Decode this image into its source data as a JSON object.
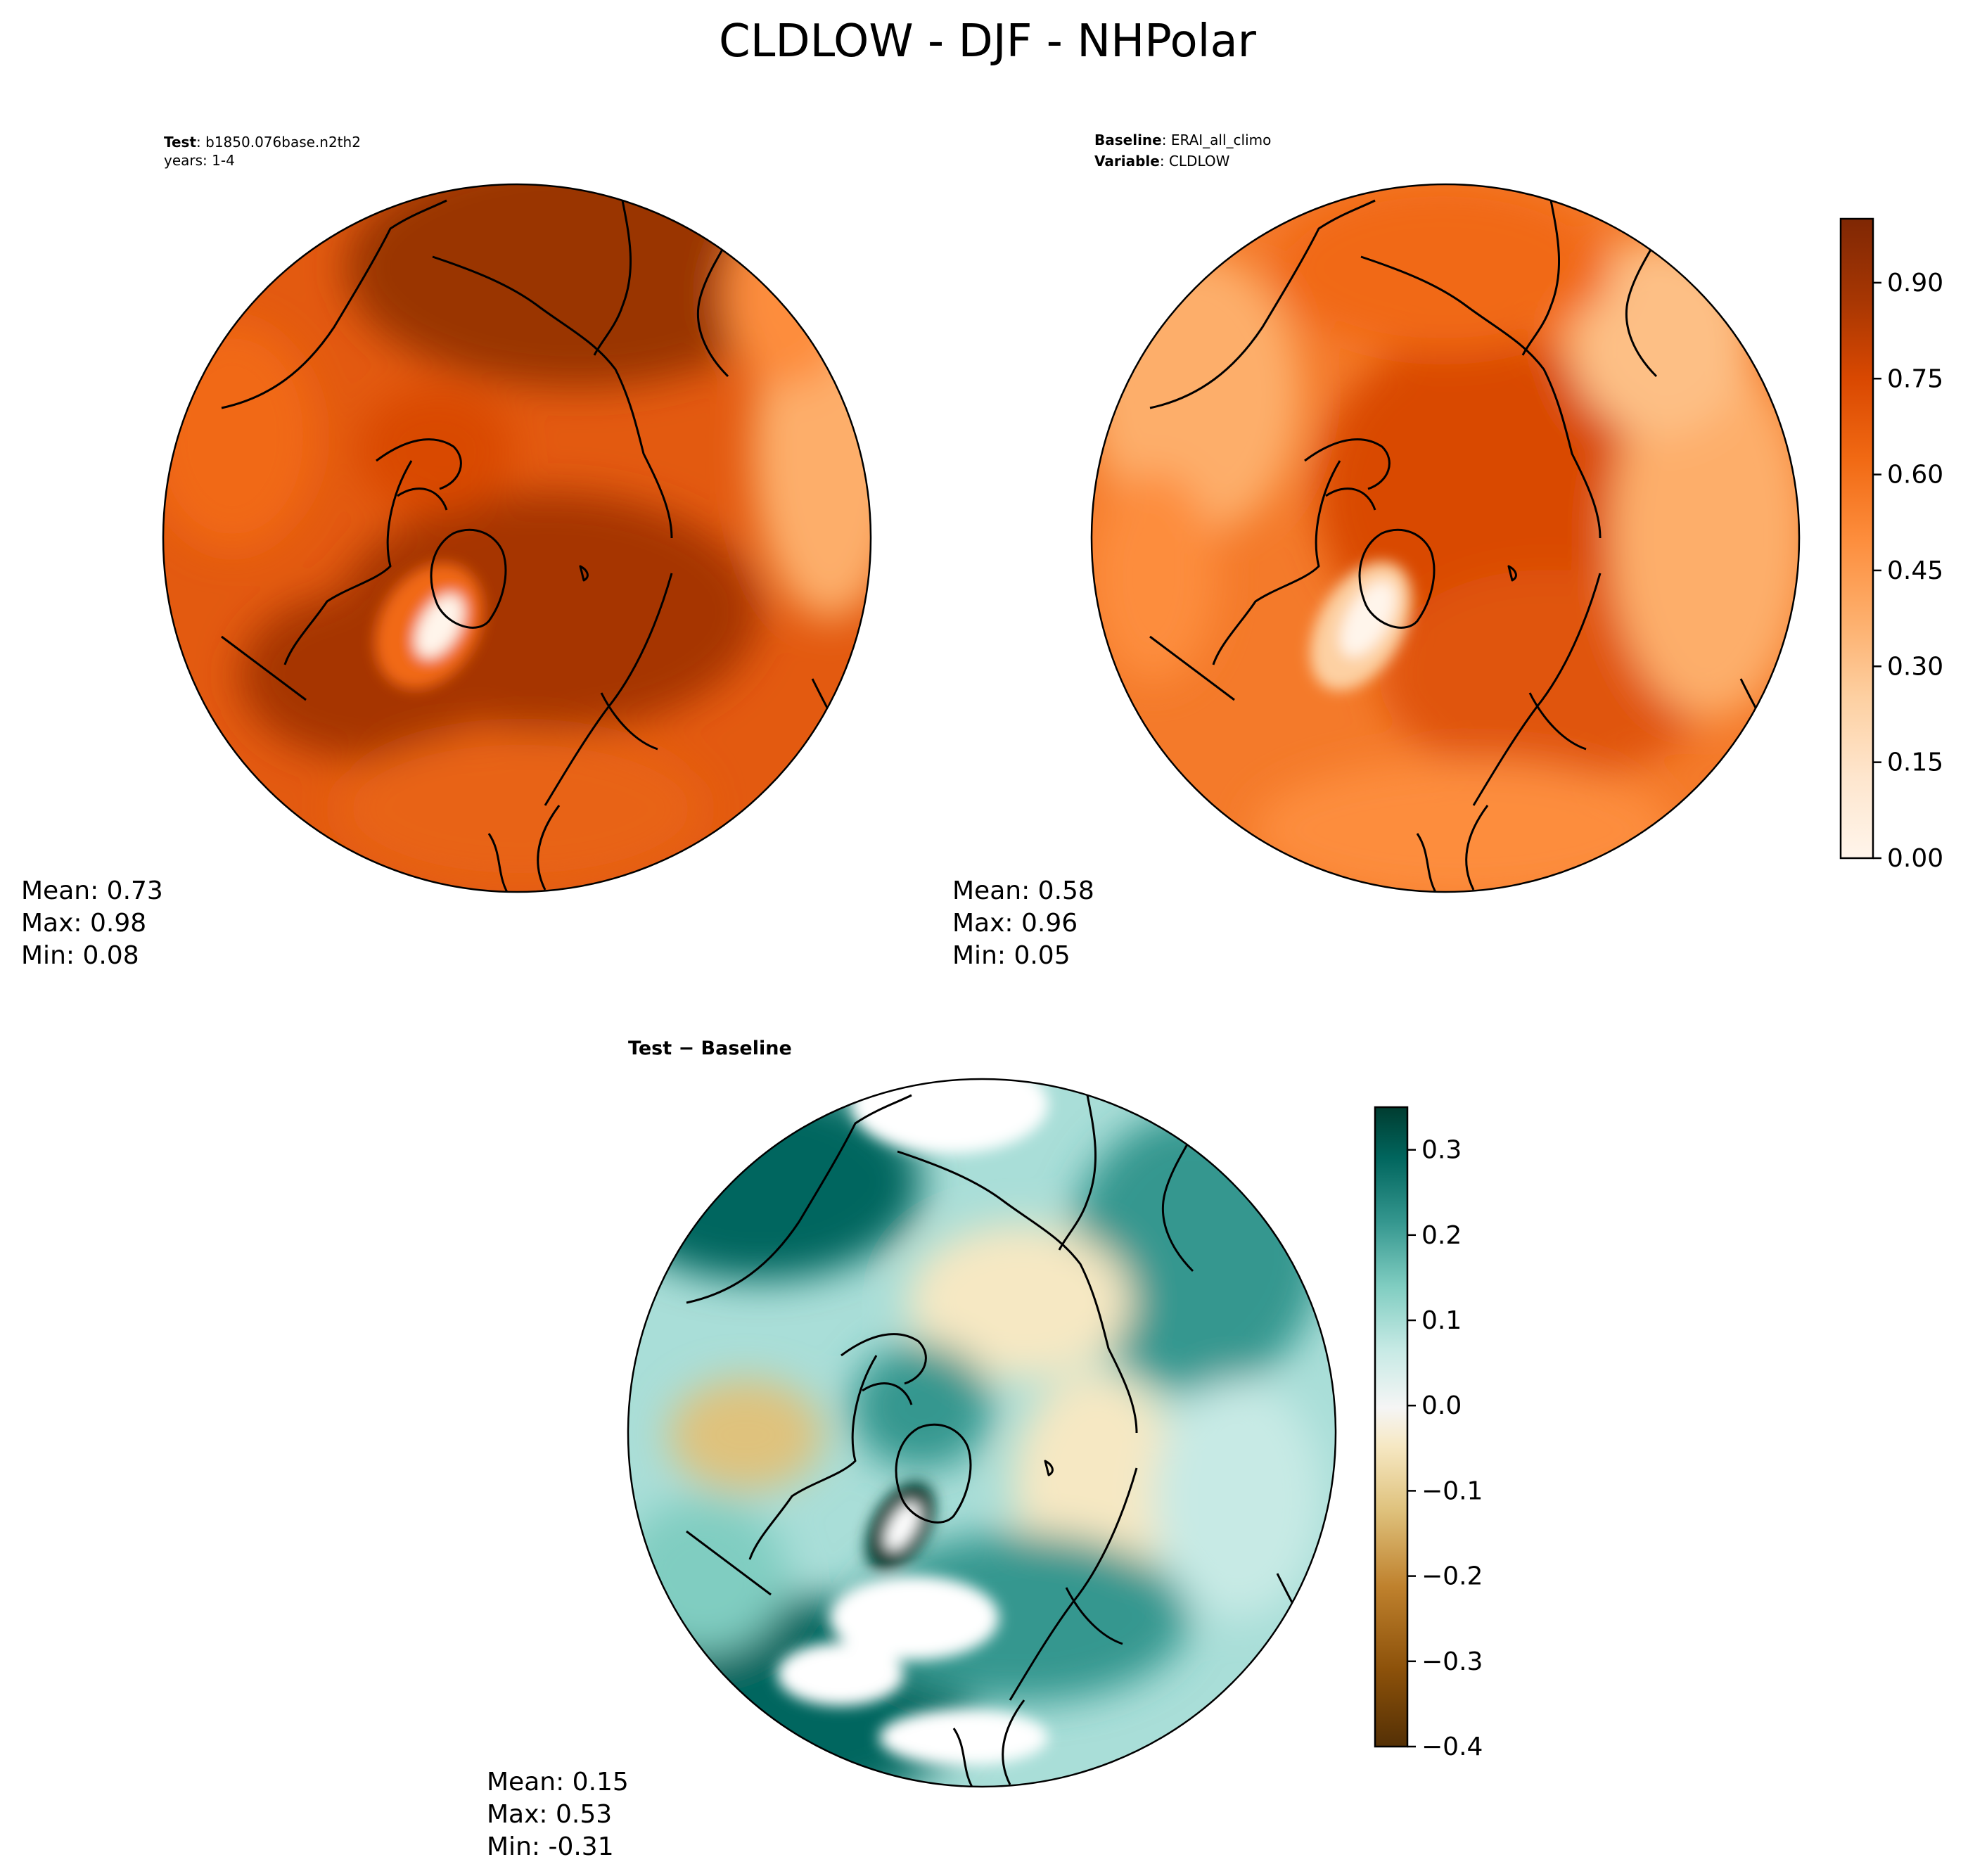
{
  "figure": {
    "title": "CLDLOW - DJF - NHPolar"
  },
  "chart_data": [
    {
      "type": "heatmap",
      "panel": "test",
      "header_lines": [
        {
          "label": "Test",
          "sep": ": ",
          "value": "b1850.076base.n2th2"
        },
        {
          "label": "",
          "sep": "",
          "value": "years: 1-4"
        }
      ],
      "stats": [
        "Mean:  0.73",
        "Max:  0.98",
        "Min:  0.08"
      ],
      "mean": 0.73,
      "max": 0.98,
      "min": 0.08,
      "colormap": "oranges"
    },
    {
      "type": "heatmap",
      "panel": "baseline",
      "header_lines": [
        {
          "label": "Baseline",
          "sep": ": ",
          "value": "ERAI_all_climo"
        },
        {
          "label": "Variable",
          "sep": ": ",
          "value": "CLDLOW"
        }
      ],
      "stats": [
        "Mean:  0.58",
        "Max:  0.96",
        "Min:  0.05"
      ],
      "mean": 0.58,
      "max": 0.96,
      "min": 0.05,
      "colormap": "oranges",
      "colorbar": {
        "ticks": [
          "0.00",
          "0.15",
          "0.30",
          "0.45",
          "0.60",
          "0.75",
          "0.90"
        ],
        "tick_values": [
          0.0,
          0.15,
          0.3,
          0.45,
          0.6,
          0.75,
          0.9
        ],
        "range": [
          0.0,
          1.0
        ],
        "levels": 20,
        "colors": [
          "#fff5eb",
          "#fee6ce",
          "#fdd0a2",
          "#fdae6b",
          "#fd8d3c",
          "#f16913",
          "#d94801",
          "#a63603",
          "#7f2704"
        ]
      }
    },
    {
      "type": "heatmap",
      "panel": "difference",
      "header_lines": [
        {
          "label": "Test − Baseline",
          "sep": "",
          "value": ""
        }
      ],
      "stats": [
        "Mean:  0.15",
        "Max:  0.53",
        "Min: -0.31"
      ],
      "mean": 0.15,
      "max": 0.53,
      "min": -0.31,
      "colormap": "BrBG",
      "colorbar": {
        "ticks": [
          "−0.4",
          "−0.3",
          "−0.2",
          "−0.1",
          "0.0",
          "0.1",
          "0.2",
          "0.3"
        ],
        "tick_values": [
          -0.4,
          -0.3,
          -0.2,
          -0.1,
          0.0,
          0.1,
          0.2,
          0.3
        ],
        "range": [
          -0.4,
          0.35
        ],
        "levels": 15,
        "colors": [
          "#543005",
          "#8c510a",
          "#bf812d",
          "#dfc27d",
          "#f6e8c3",
          "#f5f5f5",
          "#c7eae5",
          "#80cdc1",
          "#35978f",
          "#01665e",
          "#003c30"
        ]
      }
    }
  ]
}
